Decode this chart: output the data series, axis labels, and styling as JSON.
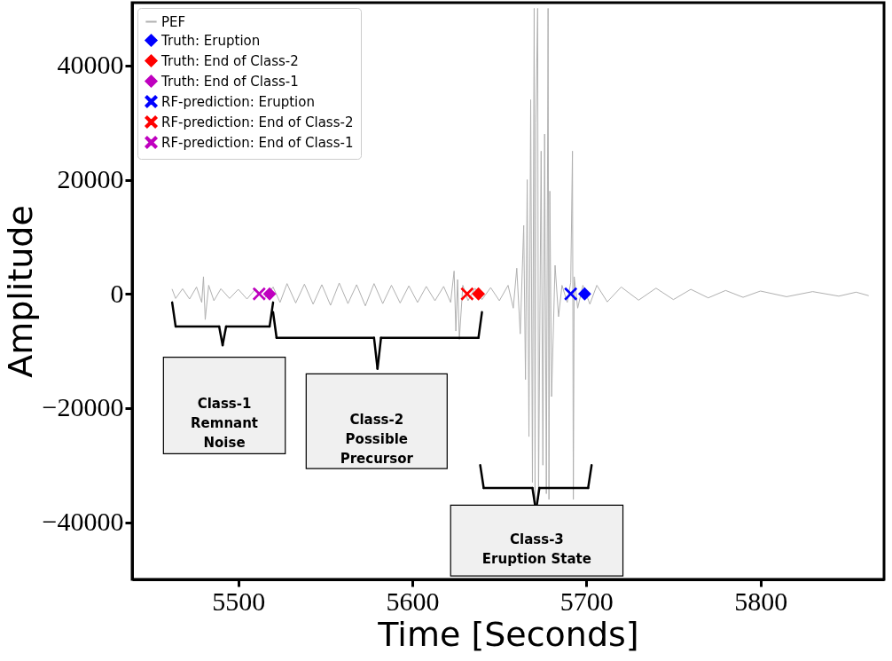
{
  "chart_data": {
    "type": "line",
    "xlabel": "Time [Seconds]",
    "ylabel": "Amplitude",
    "xlim": [
      5439,
      5871
    ],
    "ylim": [
      -50000,
      51000
    ],
    "xticks": [
      5500,
      5600,
      5700,
      5800
    ],
    "yticks": [
      -40000,
      -20000,
      0,
      20000,
      40000
    ],
    "grid": false,
    "legend": "top left",
    "series": [
      {
        "name": "PEF",
        "color": "#b0b0b0",
        "marker": "none",
        "line_style": "solid",
        "x": [
          5462,
          5464,
          5468,
          5472,
          5476,
          5479,
          5480,
          5481,
          5483,
          5486,
          5490,
          5495,
          5500,
          5505,
          5510,
          5515,
          5520,
          5524,
          5528,
          5533,
          5538,
          5543,
          5548,
          5553,
          5558,
          5563,
          5568,
          5573,
          5578,
          5583,
          5588,
          5593,
          5598,
          5603,
          5608,
          5613,
          5618,
          5622,
          5624,
          5625,
          5626,
          5627,
          5629,
          5632,
          5636,
          5640,
          5645,
          5650,
          5655,
          5658,
          5660,
          5662,
          5664,
          5665,
          5666,
          5667,
          5668,
          5669,
          5670,
          5670.5,
          5671,
          5672,
          5672.5,
          5674,
          5675,
          5676,
          5677,
          5678,
          5678.5,
          5679,
          5680,
          5682,
          5684,
          5686,
          5689,
          5691,
          5692,
          5692.5,
          5693,
          5695,
          5698,
          5702,
          5706,
          5712,
          5720,
          5730,
          5740,
          5750,
          5760,
          5770,
          5780,
          5790,
          5800,
          5815,
          5830,
          5845,
          5855,
          5862
        ],
        "values": [
          800,
          -800,
          900,
          -900,
          1200,
          -1500,
          3000,
          -4500,
          1500,
          -1200,
          900,
          -800,
          800,
          -900,
          900,
          -800,
          1200,
          -1500,
          1800,
          -1600,
          1700,
          -1800,
          1600,
          -2000,
          1900,
          -1700,
          1600,
          -2100,
          1800,
          -1700,
          1500,
          -1600,
          1400,
          -1500,
          1300,
          -1200,
          1300,
          -1500,
          4000,
          -6500,
          2500,
          -8000,
          1500,
          -1200,
          1000,
          -1000,
          1100,
          -1200,
          1500,
          -2500,
          4500,
          -7000,
          12000,
          -15000,
          20000,
          -25000,
          34000,
          -33000,
          50000,
          -36000,
          30000,
          50000,
          -36000,
          25000,
          -30000,
          28000,
          -35000,
          50000,
          -36000,
          18000,
          -18000,
          5000,
          -4000,
          1500,
          -1500,
          2000,
          25000,
          -36000,
          3000,
          -2500,
          1500,
          -1800,
          1500,
          -1400,
          1200,
          -1100,
          1000,
          -1000,
          800,
          -700,
          600,
          -600,
          500,
          -500,
          400,
          -400,
          300,
          -300
        ]
      },
      {
        "name": "Truth: Eruption",
        "type": "scatter",
        "marker": "diamond",
        "color": "#0000ff",
        "x": [
          5699
        ],
        "values": [
          0
        ]
      },
      {
        "name": "Truth: End of Class-2",
        "type": "scatter",
        "marker": "diamond",
        "color": "#ff0000",
        "x": [
          5638
        ],
        "values": [
          0
        ]
      },
      {
        "name": "Truth: End of Class-1",
        "type": "scatter",
        "marker": "diamond",
        "color": "#bf00bf",
        "x": [
          5518
        ],
        "values": [
          0
        ]
      },
      {
        "name": "RF-prediction: Eruption",
        "type": "scatter",
        "marker": "cross",
        "color": "#0000ff",
        "x": [
          5691
        ],
        "values": [
          0
        ]
      },
      {
        "name": "RF-prediction: End of Class-2",
        "type": "scatter",
        "marker": "cross",
        "color": "#ff0000",
        "x": [
          5631.5
        ],
        "values": [
          0
        ]
      },
      {
        "name": "RF-prediction: End of Class-1",
        "type": "scatter",
        "marker": "cross",
        "color": "#bf00bf",
        "x": [
          5512
        ],
        "values": [
          0
        ]
      }
    ],
    "annotations": [
      "Class-1\nRemnant\nNoise",
      "Class-2\nPossible\nPrecursor",
      "Class-3\nEruption State"
    ]
  }
}
